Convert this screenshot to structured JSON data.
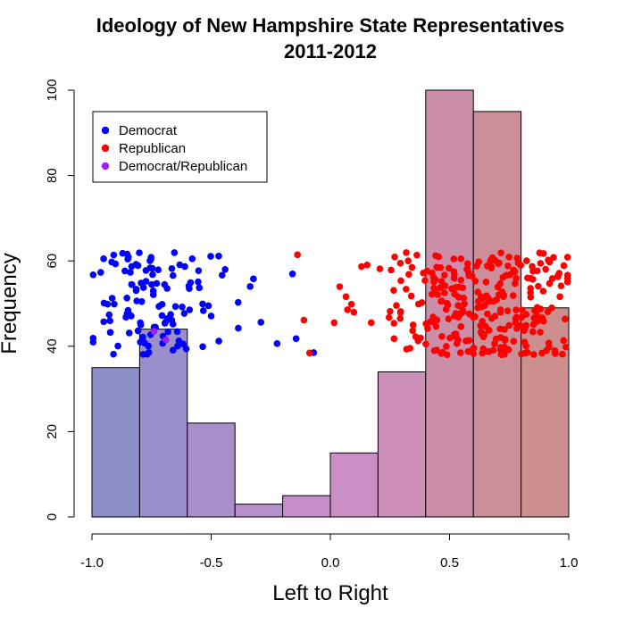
{
  "chart_data": {
    "type": "histogram",
    "title_line1": "Ideology of New Hampshire State Representatives",
    "title_line2": "2011-2012",
    "xlabel": "Left to Right",
    "ylabel": "Frequency",
    "xlim": [
      -1.0,
      1.0
    ],
    "ylim": [
      0,
      100
    ],
    "x_ticks": [
      -1.0,
      -0.5,
      0.0,
      0.5,
      1.0
    ],
    "x_tick_labels": [
      "-1.0",
      "-0.5",
      "0.0",
      "0.5",
      "1.0"
    ],
    "y_ticks": [
      0,
      20,
      40,
      60,
      80,
      100
    ],
    "y_tick_labels": [
      "0",
      "20",
      "40",
      "60",
      "80",
      "100"
    ],
    "bins": [
      {
        "from": -1.0,
        "to": -0.8,
        "count": 35,
        "color": "#8E8FCA"
      },
      {
        "from": -0.8,
        "to": -0.6,
        "count": 44,
        "color": "#9A8FCB"
      },
      {
        "from": -0.6,
        "to": -0.4,
        "count": 22,
        "color": "#AA8FCB"
      },
      {
        "from": -0.4,
        "to": -0.2,
        "count": 3,
        "color": "#B88FCA"
      },
      {
        "from": -0.2,
        "to": 0.0,
        "count": 5,
        "color": "#C48FC9"
      },
      {
        "from": 0.0,
        "to": 0.2,
        "count": 15,
        "color": "#CB8FC5"
      },
      {
        "from": 0.2,
        "to": 0.4,
        "count": 34,
        "color": "#CC8FB8"
      },
      {
        "from": 0.4,
        "to": 0.6,
        "count": 100,
        "color": "#CC8FA9"
      },
      {
        "from": 0.6,
        "to": 0.8,
        "count": 95,
        "color": "#CC8F9A"
      },
      {
        "from": 0.8,
        "to": 1.0,
        "count": 49,
        "color": "#CC8F8E"
      }
    ],
    "scatter_y_range": [
      38,
      62
    ],
    "legend": {
      "position": "top-left",
      "entries": [
        {
          "label": "Democrat",
          "color": "#0000FF"
        },
        {
          "label": "Republican",
          "color": "#FF0000"
        },
        {
          "label": "Democrat/Republican",
          "color": "#A020F0"
        }
      ]
    },
    "scatter_groups": [
      {
        "party": "Democrat",
        "color": "#0000FF",
        "count": 130,
        "ideology_clusters": [
          {
            "center": -0.82,
            "spread": 0.1,
            "n": 80
          },
          {
            "center": -0.58,
            "spread": 0.07,
            "n": 36
          },
          {
            "center": -0.38,
            "spread": 0.05,
            "n": 5
          },
          {
            "center": -0.15,
            "spread": 0.05,
            "n": 3
          }
        ],
        "named_points": [
          [
            -0.07,
            38.5
          ]
        ]
      },
      {
        "party": "Republican",
        "color": "#FF0000",
        "count": 290,
        "ideology_clusters": [
          {
            "center": -0.08,
            "spread": 0.03,
            "n": 3
          },
          {
            "center": 0.1,
            "spread": 0.07,
            "n": 10
          },
          {
            "center": 0.3,
            "spread": 0.06,
            "n": 28
          },
          {
            "center": 0.5,
            "spread": 0.06,
            "n": 85
          },
          {
            "center": 0.7,
            "spread": 0.06,
            "n": 95
          },
          {
            "center": 0.88,
            "spread": 0.07,
            "n": 69
          }
        ]
      },
      {
        "party": "Democrat/Republican",
        "color": "#A020F0",
        "count": 2,
        "named_points": [
          [
            -0.74,
            43.5
          ],
          [
            -0.69,
            41.5
          ]
        ]
      }
    ]
  }
}
